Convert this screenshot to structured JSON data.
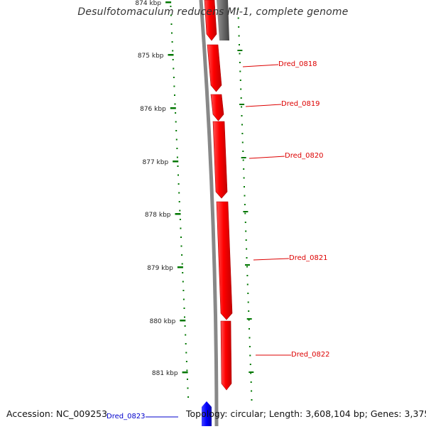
{
  "title": "Desulfotomaculum reducens MI-1, complete genome",
  "accession_text": "Accession: NC_009253",
  "topology_text": "Topology: circular; Length: 3,608,104 bp; Genes: 3,375",
  "ruler": {
    "ticks": [
      "874 kbp",
      "875 kbp",
      "876 kbp",
      "877 kbp",
      "878 kbp",
      "879 kbp",
      "880 kbp",
      "881 kbp"
    ]
  },
  "genes": [
    {
      "label": "Dred_0818",
      "color": "#dd0000"
    },
    {
      "label": "Dred_0819",
      "color": "#dd0000"
    },
    {
      "label": "Dred_0820",
      "color": "#dd0000"
    },
    {
      "label": "Dred_0821",
      "color": "#dd0000"
    },
    {
      "label": "Dred_0822",
      "color": "#dd0000"
    },
    {
      "label": "Dred_0823",
      "color": "#0000cc"
    }
  ],
  "colors": {
    "forward_gene": "#ff0000",
    "reverse_gene": "#0000ff",
    "other_gene": "#666666",
    "backbone": "#888888",
    "tick": "#007700"
  }
}
